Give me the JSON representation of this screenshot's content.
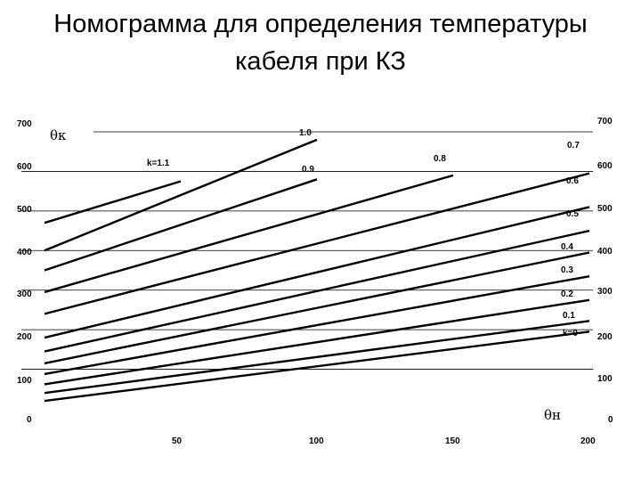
{
  "title": {
    "line1": "Номограмма для определения температуры",
    "line2": "кабеля при КЗ"
  },
  "chart_data": {
    "type": "line",
    "title": "Номограмма для определения температуры кабеля при КЗ",
    "xlabel": "θн",
    "ylabel": "θк",
    "xlim": [
      0,
      200
    ],
    "ylim": [
      0,
      700
    ],
    "x_ticks": [
      "50",
      "100",
      "150",
      "200"
    ],
    "y_ticks_left": [
      "0",
      "100",
      "200",
      "300",
      "400",
      "500",
      "600",
      "700"
    ],
    "y_ticks_right": [
      "0",
      "100",
      "200",
      "300",
      "400",
      "500",
      "600",
      "700"
    ],
    "grid": "horizontal",
    "series": [
      {
        "name": "k=0",
        "x": [
          0,
          200
        ],
        "y": [
          20,
          195
        ]
      },
      {
        "name": "0.1",
        "x": [
          0,
          200
        ],
        "y": [
          40,
          222
        ]
      },
      {
        "name": "0.2",
        "x": [
          0,
          200
        ],
        "y": [
          62,
          275
        ]
      },
      {
        "name": "0.3",
        "x": [
          0,
          200
        ],
        "y": [
          88,
          335
        ]
      },
      {
        "name": "0.4",
        "x": [
          0,
          200
        ],
        "y": [
          115,
          395
        ]
      },
      {
        "name": "0.5",
        "x": [
          0,
          200
        ],
        "y": [
          145,
          450
        ]
      },
      {
        "name": "0.6",
        "x": [
          0,
          200
        ],
        "y": [
          180,
          510
        ]
      },
      {
        "name": "0.7",
        "x": [
          0,
          200
        ],
        "y": [
          240,
          595
        ]
      },
      {
        "name": "0.8",
        "x": [
          0,
          150
        ],
        "y": [
          295,
          590
        ]
      },
      {
        "name": "0.9",
        "x": [
          0,
          100
        ],
        "y": [
          350,
          580
        ]
      },
      {
        "name": "1.0",
        "x": [
          0,
          100
        ],
        "y": [
          400,
          680
        ]
      },
      {
        "name": "k=1.1",
        "x": [
          0,
          50
        ],
        "y": [
          470,
          575
        ]
      }
    ],
    "annotations": [
      "k=0",
      "0.1",
      "0.2",
      "0.3",
      "0.4",
      "0.5",
      "0.6",
      "0.7",
      "0.8",
      "0.9",
      "1.0",
      "k=1.1"
    ]
  }
}
